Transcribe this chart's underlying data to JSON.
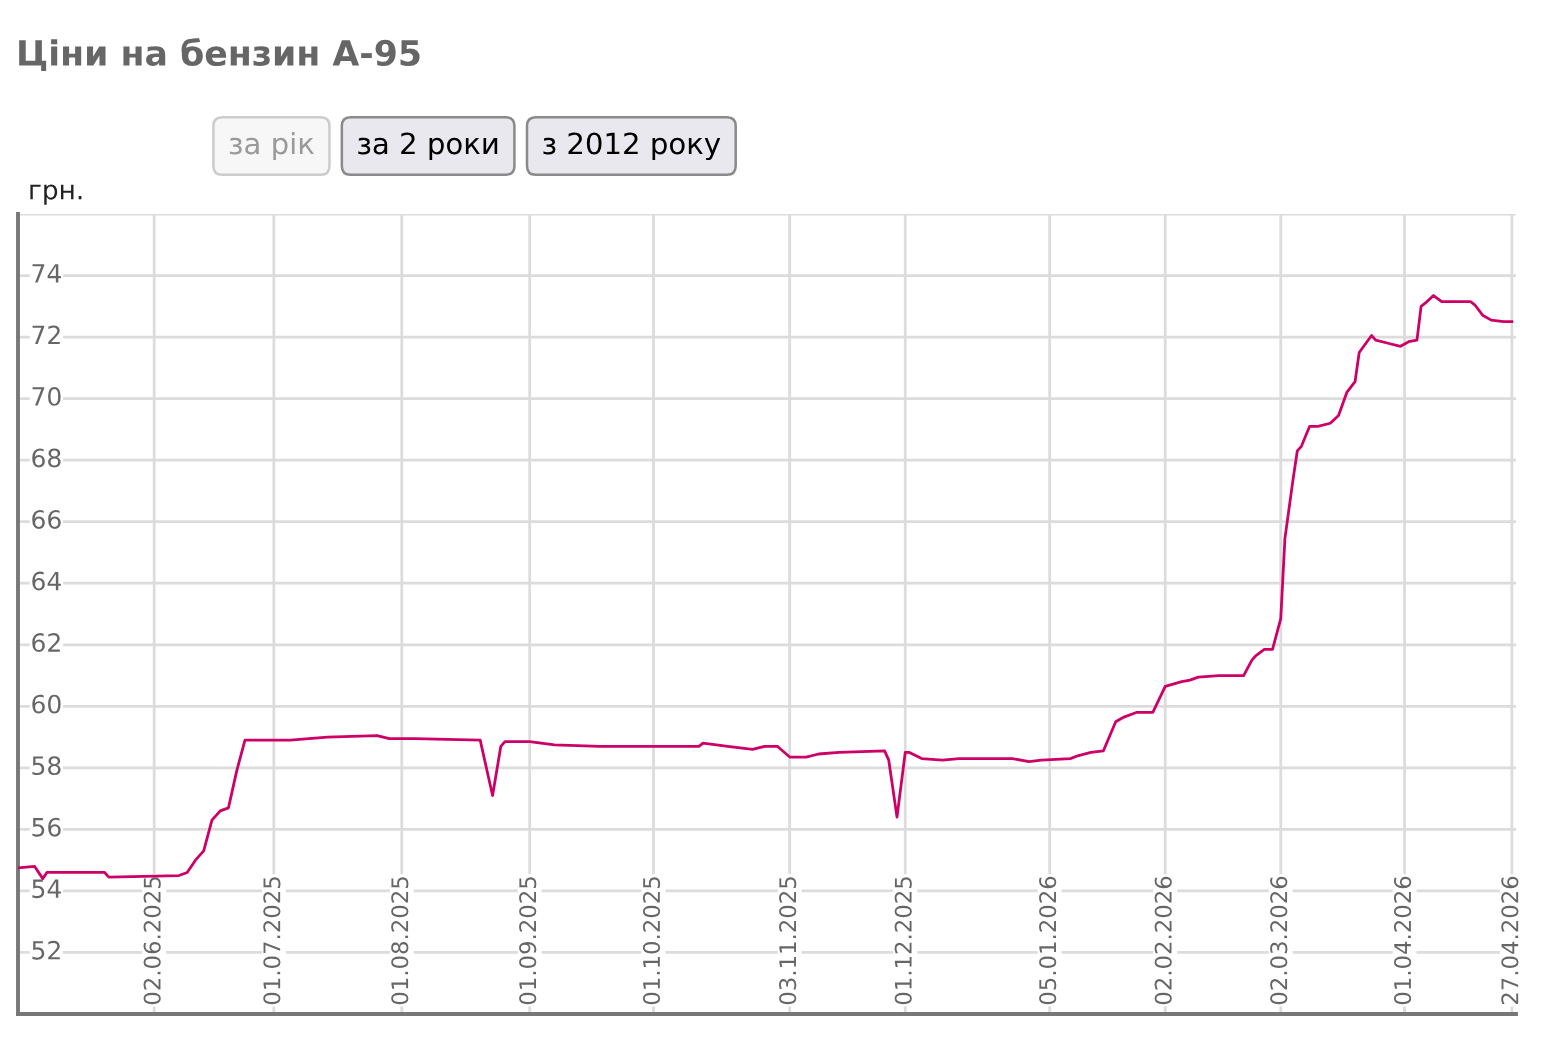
{
  "chart_data": {
    "type": "line",
    "title": "Ціни на бензин А-95",
    "ylabel": "грн.",
    "annotations": [
      "за рік",
      "за 2 роки",
      "з 2012 року"
    ],
    "x": [
      "2025-04-30",
      "2025-05-04",
      "2025-05-06",
      "2025-05-07",
      "2025-05-21",
      "2025-05-22",
      "2025-06-08",
      "2025-06-10",
      "2025-06-12",
      "2025-06-14",
      "2025-06-16",
      "2025-06-18",
      "2025-06-20",
      "2025-06-22",
      "2025-06-24",
      "2025-07-05",
      "2025-07-14",
      "2025-07-26",
      "2025-07-29",
      "2025-08-04",
      "2025-08-20",
      "2025-08-21",
      "2025-08-23",
      "2025-08-25",
      "2025-08-26",
      "2025-09-01",
      "2025-09-07",
      "2025-09-18",
      "2025-10-12",
      "2025-10-13",
      "2025-10-19",
      "2025-10-25",
      "2025-10-28",
      "2025-10-31",
      "2025-11-03",
      "2025-11-07",
      "2025-11-10",
      "2025-11-15",
      "2025-11-26",
      "2025-11-27",
      "2025-11-29",
      "2025-12-01",
      "2025-12-02",
      "2025-12-05",
      "2025-12-10",
      "2025-12-14",
      "2025-12-27",
      "2025-12-31",
      "2026-01-03",
      "2026-01-10",
      "2026-01-12",
      "2026-01-15",
      "2026-01-18",
      "2026-01-21",
      "2026-01-23",
      "2026-01-26",
      "2026-01-30",
      "2026-02-02",
      "2026-02-06",
      "2026-02-08",
      "2026-02-10",
      "2026-02-15",
      "2026-02-21",
      "2026-02-23",
      "2026-02-24",
      "2026-02-26",
      "2026-02-28",
      "2026-03-02",
      "2026-03-03",
      "2026-03-05",
      "2026-03-06",
      "2026-03-07",
      "2026-03-09",
      "2026-03-11",
      "2026-03-14",
      "2026-03-16",
      "2026-03-18",
      "2026-03-20",
      "2026-03-21",
      "2026-03-24",
      "2026-03-25",
      "2026-03-28",
      "2026-03-31",
      "2026-04-02",
      "2026-04-04",
      "2026-04-05",
      "2026-04-06",
      "2026-04-08",
      "2026-04-10",
      "2026-04-17",
      "2026-04-18",
      "2026-04-20",
      "2026-04-22",
      "2026-04-25",
      "2026-04-27"
    ],
    "values": [
      54.75,
      54.8,
      54.4,
      54.6,
      54.6,
      54.45,
      54.5,
      54.6,
      55.0,
      55.3,
      56.3,
      56.6,
      56.7,
      57.9,
      58.9,
      58.9,
      59.0,
      59.05,
      58.95,
      58.95,
      58.9,
      58.3,
      57.1,
      58.7,
      58.85,
      58.85,
      58.75,
      58.7,
      58.7,
      58.8,
      58.7,
      58.6,
      58.7,
      58.7,
      58.35,
      58.35,
      58.45,
      58.5,
      58.55,
      58.25,
      56.4,
      58.5,
      58.5,
      58.3,
      58.25,
      58.3,
      58.3,
      58.2,
      58.25,
      58.3,
      58.4,
      58.5,
      58.55,
      59.5,
      59.65,
      59.8,
      59.8,
      60.65,
      60.8,
      60.85,
      60.95,
      61.0,
      61.0,
      61.5,
      61.65,
      61.85,
      61.85,
      62.85,
      65.45,
      67.4,
      68.3,
      68.45,
      69.1,
      69.1,
      69.2,
      69.45,
      70.2,
      70.55,
      71.5,
      72.05,
      71.9,
      71.8,
      71.7,
      71.85,
      71.9,
      73.0,
      73.1,
      73.35,
      73.15,
      73.15,
      73.05,
      72.7,
      72.55,
      72.5,
      72.5
    ],
    "color": "#cc0066",
    "xlim": [
      "2025-04-30",
      "2026-04-28"
    ],
    "xticks": [
      {
        "value": "2025-06-02",
        "label": "02.06.2025"
      },
      {
        "value": "2025-07-01",
        "label": "01.07.2025"
      },
      {
        "value": "2025-08-01",
        "label": "01.08.2025"
      },
      {
        "value": "2025-09-01",
        "label": "01.09.2025"
      },
      {
        "value": "2025-10-01",
        "label": "01.10.2025"
      },
      {
        "value": "2025-11-03",
        "label": "03.11.2025"
      },
      {
        "value": "2025-12-01",
        "label": "01.12.2025"
      },
      {
        "value": "2026-01-05",
        "label": "05.01.2026"
      },
      {
        "value": "2026-02-02",
        "label": "02.02.2026"
      },
      {
        "value": "2026-03-02",
        "label": "02.03.2026"
      },
      {
        "value": "2026-04-01",
        "label": "01.04.2026"
      },
      {
        "value": "2026-04-27",
        "label": "27.04.2026"
      }
    ],
    "ylim": [
      50,
      76
    ],
    "yticks": [
      52,
      54,
      56,
      58,
      60,
      62,
      64,
      66,
      68,
      70,
      72,
      74,
      {
        "value": 76,
        "label": null
      }
    ],
    "grid": true
  }
}
